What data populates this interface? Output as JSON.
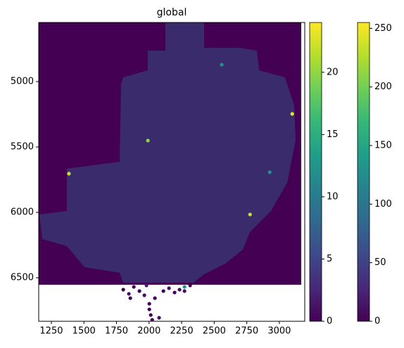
{
  "chart_data": {
    "type": "scatter",
    "title": "global",
    "xlim": [
      1153,
      3195
    ],
    "ylim": [
      6833,
      4548
    ],
    "xticks": [
      1250,
      1500,
      1750,
      2000,
      2250,
      2500,
      2750,
      3000
    ],
    "yticks": [
      5000,
      5500,
      6000,
      6500
    ],
    "colormap": [
      "#440154",
      "#482878",
      "#3e4989",
      "#31688e",
      "#26828e",
      "#1f9e89",
      "#35b779",
      "#6ece58",
      "#b5de2b",
      "#fde725"
    ],
    "x": [
      1802,
      1845,
      1883,
      1926,
      1964,
      2002,
      2002,
      2013,
      2024,
      2045,
      2077,
      2110,
      2153,
      2196,
      2234,
      2272,
      2272,
      2315,
      1980,
      1856,
      3099,
      2926,
      2775,
      1991,
      1385,
      2558
    ],
    "y": [
      6591,
      6623,
      6570,
      6602,
      6634,
      6699,
      6742,
      6785,
      6822,
      6656,
      6806,
      6602,
      6580,
      6613,
      6591,
      6570,
      6602,
      6559,
      6559,
      6656,
      5247,
      5693,
      6016,
      5451,
      5704,
      4871
    ],
    "values": [
      0,
      1,
      0,
      0,
      1,
      0,
      0,
      0,
      0,
      0,
      1,
      0,
      1,
      0,
      1,
      12,
      1,
      0,
      2,
      0,
      23,
      12,
      22,
      20,
      22,
      12
    ],
    "colorbars": [
      {
        "lim": [
          0,
          24
        ],
        "ticks": [
          0,
          5,
          10,
          15,
          20
        ]
      },
      {
        "lim": [
          0,
          255
        ],
        "ticks": [
          0,
          50,
          100,
          150,
          200,
          250
        ]
      }
    ]
  }
}
